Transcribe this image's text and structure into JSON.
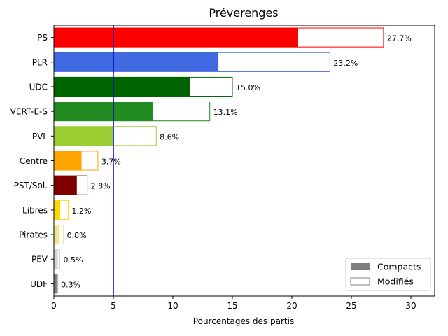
{
  "chart_data": {
    "type": "bar",
    "orientation": "horizontal",
    "title": "Préverenges",
    "xlabel": "Pourcentages des partis",
    "ylabel": "",
    "xlim": [
      0,
      32
    ],
    "xticks": [
      0,
      5,
      10,
      15,
      20,
      25,
      30
    ],
    "threshold": 5,
    "threshold_color": "#0000cc",
    "grid": false,
    "legend_position": "lower right",
    "legend": [
      {
        "label": "Compacts",
        "style": "filled",
        "color": "#808080"
      },
      {
        "label": "Modifiés",
        "style": "outline",
        "color": "#808080"
      }
    ],
    "categories": [
      "PS",
      "PLR",
      "UDC",
      "VERT-E-S",
      "PVL",
      "Centre",
      "PST/Sol.",
      "Libres",
      "Pirates",
      "PEV",
      "UDF"
    ],
    "colors": [
      "#ff0000",
      "#4169e1",
      "#006400",
      "#228b22",
      "#9acd32",
      "#ffa500",
      "#800000",
      "#ffd700",
      "#f0e68c",
      "#d3d3d3",
      "#808080"
    ],
    "series": [
      {
        "name": "Compacts",
        "values": [
          20.5,
          13.8,
          11.4,
          8.3,
          5.0,
          2.3,
          1.9,
          0.5,
          0.4,
          0.3,
          0.2
        ]
      },
      {
        "name": "Modifiés",
        "values": [
          27.7,
          23.2,
          15.0,
          13.1,
          8.6,
          3.7,
          2.8,
          1.2,
          0.8,
          0.5,
          0.3
        ]
      }
    ],
    "data_labels": [
      "27.7%",
      "23.2%",
      "15.0%",
      "13.1%",
      "8.6%",
      "3.7%",
      "2.8%",
      "1.2%",
      "0.8%",
      "0.5%",
      "0.3%"
    ]
  }
}
